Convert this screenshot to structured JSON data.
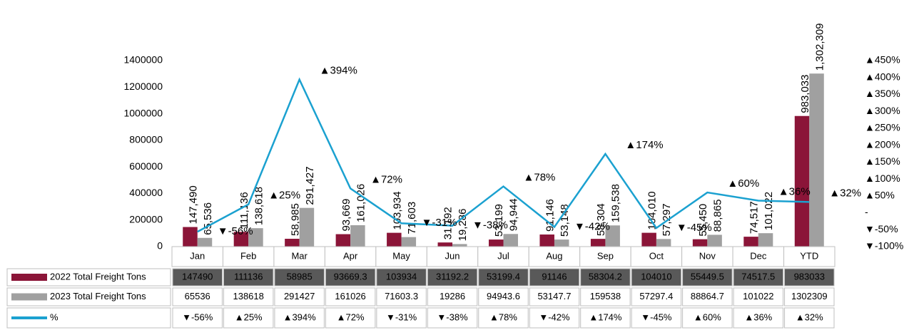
{
  "chart_data": {
    "type": "bar-line",
    "categories": [
      "Jan",
      "Feb",
      "Mar",
      "Apr",
      "May",
      "Jun",
      "Jul",
      "Aug",
      "Sep",
      "Oct",
      "Nov",
      "Dec",
      "YTD"
    ],
    "series": [
      {
        "name": "2022 Total Freight Tons",
        "color": "#8b1538",
        "values": [
          147490,
          111136,
          58985,
          93669.3,
          103934,
          31192.2,
          53199.4,
          91146,
          58304.2,
          104010,
          55449.5,
          74517.5,
          983033
        ],
        "value_labels": [
          "147,490",
          "111,136",
          "58,985",
          "93,669",
          "103,934",
          "31,192",
          "53,199",
          "91,146",
          "58,304",
          "104,010",
          "55,450",
          "74,517",
          "983,033"
        ]
      },
      {
        "name": "2023 Total Freight Tons",
        "color": "#a0a0a0",
        "values": [
          65536,
          138618,
          291427,
          161026,
          71603.3,
          19286,
          94943.6,
          53147.7,
          159538,
          57297.4,
          88864.7,
          101022,
          1302309
        ],
        "value_labels": [
          "65,536",
          "138,618",
          "291,427",
          "161,026",
          "71,603",
          "19,286",
          "94,944",
          "53,148",
          "159,538",
          "57,297",
          "88,865",
          "101,022",
          "1,302,309"
        ]
      },
      {
        "name": "%",
        "color": "#1ba1d0",
        "axis": "y2",
        "values": [
          -56,
          25,
          394,
          72,
          -31,
          -38,
          78,
          -42,
          174,
          -45,
          60,
          36,
          32
        ],
        "value_labels": [
          "▼-56%",
          "▲25%",
          "▲394%",
          "▲72%",
          "▼-31%",
          "▼-38%",
          "▲78%",
          "▼-42%",
          "▲174%",
          "▼-45%",
          "▲60%",
          "▲36%",
          "▲32%"
        ]
      }
    ],
    "ylim": [
      0,
      1400000
    ],
    "yticks": [
      0,
      200000,
      400000,
      600000,
      800000,
      1000000,
      1200000,
      1400000
    ],
    "y2lim": [
      -100,
      450
    ],
    "y2ticks": [
      {
        "value": -100,
        "label": "▼-100%"
      },
      {
        "value": -50,
        "label": "▼-50%"
      },
      {
        "value": 0,
        "label": "-"
      },
      {
        "value": 50,
        "label": "▲50%"
      },
      {
        "value": 100,
        "label": "▲100%"
      },
      {
        "value": 150,
        "label": "▲150%"
      },
      {
        "value": 200,
        "label": "▲200%"
      },
      {
        "value": 250,
        "label": "▲250%"
      },
      {
        "value": 300,
        "label": "▲300%"
      },
      {
        "value": 350,
        "label": "▲350%"
      },
      {
        "value": 400,
        "label": "▲400%"
      },
      {
        "value": 450,
        "label": "▲450%"
      }
    ]
  }
}
